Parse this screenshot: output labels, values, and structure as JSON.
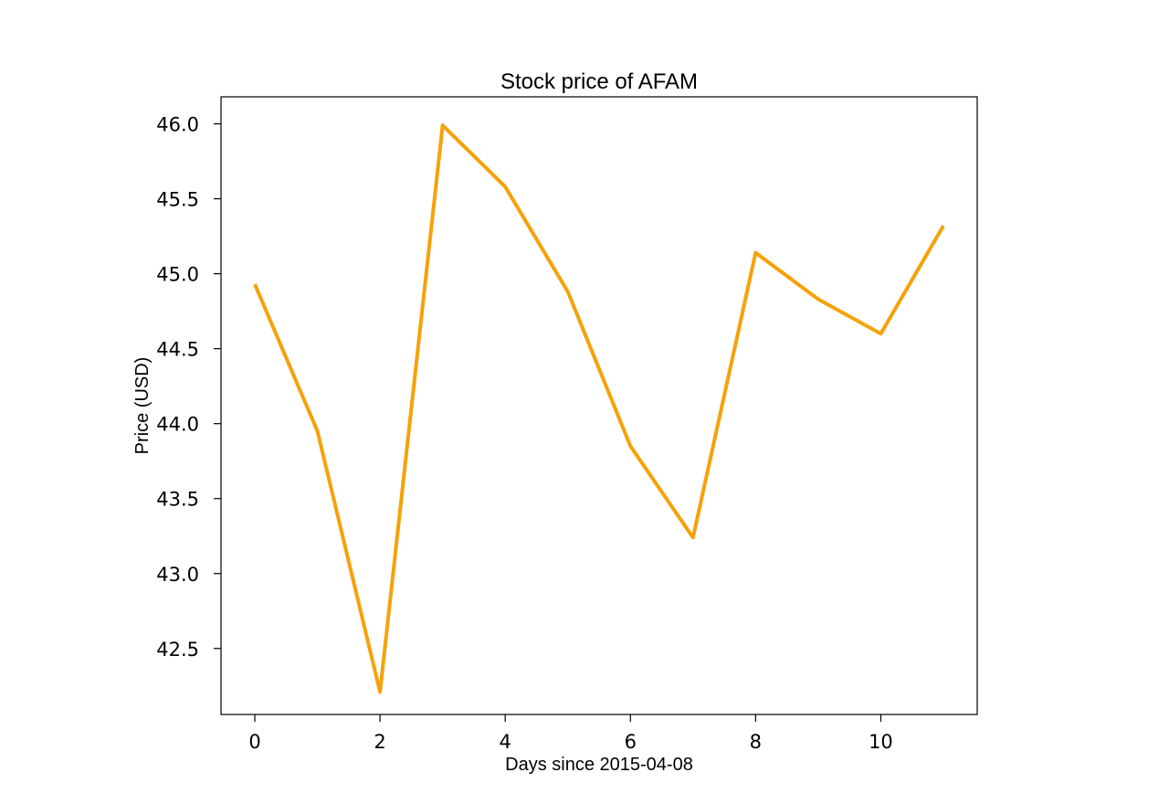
{
  "chart_data": {
    "type": "line",
    "title": "Stock price of AFAM",
    "xlabel": "Days since 2015-04-08",
    "ylabel": "Price (USD)",
    "x": [
      0,
      1,
      2,
      3,
      4,
      5,
      6,
      7,
      8,
      9,
      10,
      11
    ],
    "series": [
      {
        "values": [
          44.93,
          43.95,
          42.21,
          45.99,
          45.58,
          44.88,
          43.85,
          43.24,
          45.14,
          44.83,
          44.6,
          45.32
        ],
        "color": "#f5a20a"
      }
    ],
    "xticks": [
      0,
      2,
      4,
      6,
      8,
      10
    ],
    "yticks": [
      42.5,
      43.0,
      43.5,
      44.0,
      44.5,
      45.0,
      45.5,
      46.0
    ],
    "xlim": [
      -0.54,
      11.54
    ],
    "ylim": [
      42.06,
      46.18
    ],
    "grid": false
  }
}
